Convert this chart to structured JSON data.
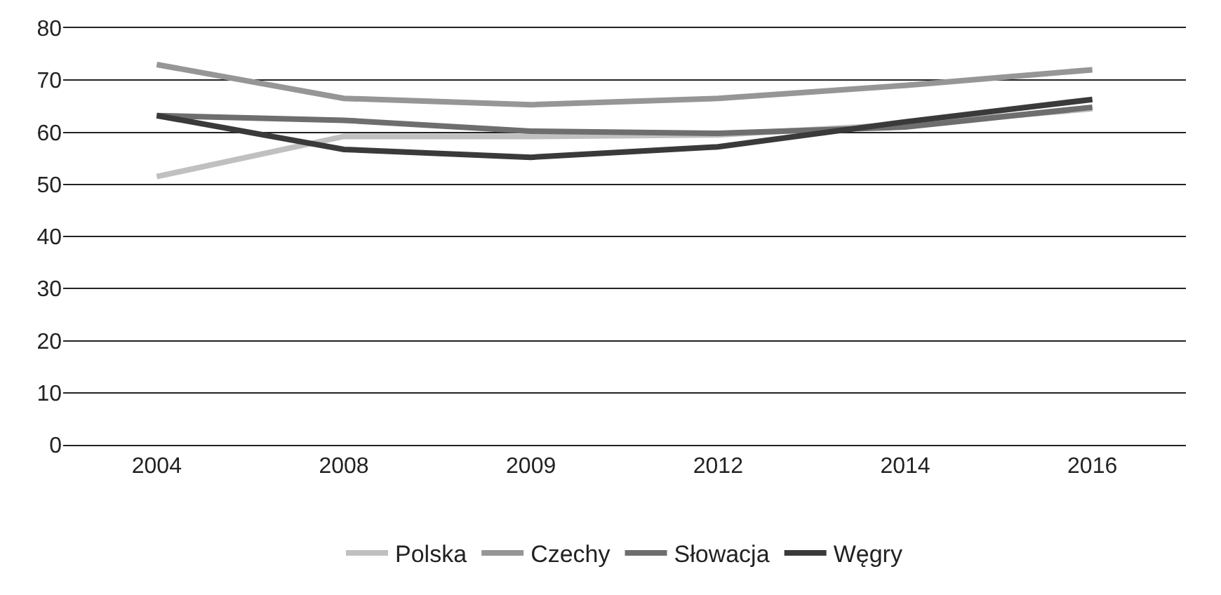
{
  "chart_data": {
    "type": "line",
    "categories": [
      "2004",
      "2008",
      "2009",
      "2012",
      "2014",
      "2016"
    ],
    "series": [
      {
        "name": "Polska",
        "color": "#c0c0c0",
        "values": [
          51.5,
          59.2,
          59.2,
          59.5,
          61.5,
          64.5
        ]
      },
      {
        "name": "Czechy",
        "color": "#969696",
        "values": [
          73,
          66.5,
          65.3,
          66.5,
          69,
          72
        ]
      },
      {
        "name": "Słowacja",
        "color": "#6e6e6e",
        "values": [
          63.2,
          62.3,
          60.2,
          59.8,
          61,
          64.8
        ]
      },
      {
        "name": "Węgry",
        "color": "#3a3a3a",
        "values": [
          63.2,
          56.7,
          55.2,
          57.2,
          62,
          66.3
        ]
      }
    ],
    "ylim": [
      0,
      80
    ],
    "yticks": [
      0,
      10,
      20,
      30,
      40,
      50,
      60,
      70,
      80
    ],
    "grid": "y",
    "legend": "bottom",
    "marker": "none",
    "line_style": "solid"
  }
}
